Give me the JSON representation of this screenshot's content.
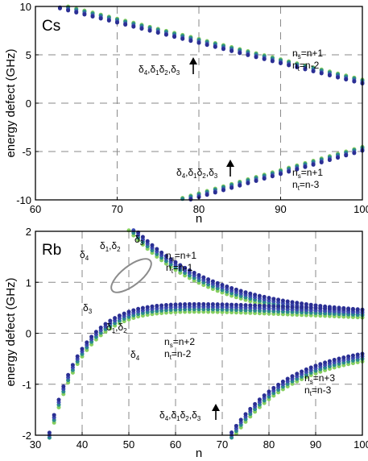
{
  "colors": {
    "s1": "#86cf5f",
    "s2": "#2a8a8c",
    "s3": "#3c4bb0",
    "s4": "#2b2f94"
  },
  "chart_data": [
    {
      "type": "scatter",
      "panel_label": "Cs",
      "xlabel": "n",
      "ylabel": "energy defect (GHz)",
      "xlim": [
        60,
        100
      ],
      "ylim": [
        -10,
        10
      ],
      "xticks": [
        60,
        70,
        80,
        90,
        100
      ],
      "yticks": [
        10,
        5,
        0,
        -5,
        -10
      ],
      "grid": "dashed",
      "series": [
        {
          "color": "#86cf5f",
          "branch": "upper",
          "model": {
            "A": 1.0,
            "n0": 61.0,
            "sign": 1,
            "p": 3,
            "offset": 0.2
          },
          "n_start": 63,
          "n_end": 100
        },
        {
          "color": "#2a8a8c",
          "branch": "upper",
          "model": {
            "A": 1.0,
            "n0": 61.0,
            "sign": 1,
            "p": 3,
            "offset": 0.1
          },
          "n_start": 63,
          "n_end": 100
        },
        {
          "color": "#3c4bb0",
          "branch": "upper",
          "model": {
            "A": 1.0,
            "n0": 61.0,
            "sign": 1,
            "p": 3,
            "offset": -0.1
          },
          "n_start": 63,
          "n_end": 100
        },
        {
          "color": "#2b2f94",
          "branch": "upper",
          "model": {
            "A": 1.0,
            "n0": 61.0,
            "sign": 1,
            "p": 3,
            "offset": -0.2
          },
          "n_start": 63,
          "n_end": 100
        },
        {
          "color": "#86cf5f",
          "branch": "lower",
          "model": {
            "A": 1.0,
            "n0": 76.0,
            "sign": -1,
            "p": 3,
            "offset": 0.2
          },
          "n_start": 78,
          "n_end": 100
        },
        {
          "color": "#2a8a8c",
          "branch": "lower",
          "model": {
            "A": 1.0,
            "n0": 76.0,
            "sign": -1,
            "p": 3,
            "offset": 0.1
          },
          "n_start": 78,
          "n_end": 100
        },
        {
          "color": "#3c4bb0",
          "branch": "lower",
          "model": {
            "A": 1.0,
            "n0": 76.0,
            "sign": -1,
            "p": 3,
            "offset": -0.1
          },
          "n_start": 78,
          "n_end": 100
        },
        {
          "color": "#2b2f94",
          "branch": "lower",
          "model": {
            "A": 1.0,
            "n0": 76.0,
            "sign": -1,
            "p": 3,
            "offset": -0.2
          },
          "n_start": 78,
          "n_end": 100
        }
      ],
      "annotations": [
        {
          "id": "cs-upper-deltas",
          "text": "δ4,δ1δ2,δ3",
          "n": 79.5,
          "value": 4.8
        },
        {
          "id": "cs-upper-ns",
          "line1": "ns=n+1",
          "line2": "nt=n-2",
          "n": 95,
          "value": 5.5
        },
        {
          "id": "cs-lower-deltas",
          "text": "δ4,δ1δ2,δ3",
          "n": 84.5,
          "value": -6.6
        },
        {
          "id": "cs-lower-ns",
          "line1": "ns=n+1",
          "line2": "nt=n-3",
          "n": 95,
          "value": -7.4
        }
      ]
    },
    {
      "type": "scatter",
      "panel_label": "Rb",
      "xlabel": "n",
      "ylabel": "energy defect (GHz)",
      "xlim": [
        30,
        100
      ],
      "ylim": [
        -2,
        2
      ],
      "xticks": [
        30,
        40,
        50,
        60,
        70,
        80,
        90,
        100
      ],
      "yticks": [
        2,
        1,
        0,
        -1,
        -2
      ],
      "grid": "dashed",
      "series": [
        {
          "color": "#86cf5f",
          "branch": "upper",
          "model": {
            "A": 0.4,
            "p": 1,
            "c": 0.2
          },
          "n_start": 45,
          "n_end": 100
        },
        {
          "color": "#2a8a8c",
          "branch": "upper",
          "model": {
            "A": 0.4,
            "p": 1,
            "c": 0.25
          },
          "n_start": 45,
          "n_end": 100
        },
        {
          "color": "#3c4bb0",
          "branch": "upper",
          "model": {
            "A": 0.4,
            "p": 1,
            "c": 0.3
          },
          "n_start": 45,
          "n_end": 100
        },
        {
          "color": "#2b2f94",
          "branch": "upper",
          "model": {
            "A": 0.4,
            "p": 1,
            "c": 0.35
          },
          "n_start": 45,
          "n_end": 100
        },
        {
          "color": "#86cf5f",
          "branch": "middle",
          "model": {
            "A": 0.4,
            "p": 1,
            "c": -0.35
          },
          "n_start": 33,
          "n_end": 100
        },
        {
          "color": "#2a8a8c",
          "branch": "middle",
          "model": {
            "A": 0.4,
            "p": 1,
            "c": -0.3
          },
          "n_start": 33,
          "n_end": 100
        },
        {
          "color": "#3c4bb0",
          "branch": "middle",
          "model": {
            "A": 0.4,
            "p": 1,
            "c": -0.25
          },
          "n_start": 33,
          "n_end": 100
        },
        {
          "color": "#2b2f94",
          "branch": "middle",
          "model": {
            "A": 0.4,
            "p": 1,
            "c": -0.2
          },
          "n_start": 33,
          "n_end": 100
        },
        {
          "color": "#86cf5f",
          "branch": "lower",
          "model": {
            "A": 0.4,
            "p": 1,
            "c": -0.9
          },
          "n_start": 69,
          "n_end": 100
        },
        {
          "color": "#2a8a8c",
          "branch": "lower",
          "model": {
            "A": 0.4,
            "p": 1,
            "c": -0.85
          },
          "n_start": 69,
          "n_end": 100
        },
        {
          "color": "#3c4bb0",
          "branch": "lower",
          "model": {
            "A": 0.4,
            "p": 1,
            "c": -0.8
          },
          "n_start": 69,
          "n_end": 100
        },
        {
          "color": "#2b2f94",
          "branch": "lower",
          "model": {
            "A": 0.4,
            "p": 1,
            "c": -0.75
          },
          "n_start": 69,
          "n_end": 100
        }
      ],
      "annotations": [
        {
          "id": "rb-delta4-upper",
          "text": "δ4",
          "n": 41,
          "value": 1.65
        },
        {
          "id": "rb-delta12-upper",
          "text": "δ1,δ2",
          "n": 48,
          "value": 1.8
        },
        {
          "id": "rb-delta3-upper",
          "text": "δ3",
          "n": 53,
          "value": 1.85
        },
        {
          "id": "rb-ns-upper",
          "line1": "ns=n+1",
          "line2": "nt=n-1",
          "n": 65,
          "value": 1.4
        },
        {
          "id": "rb-delta3-mid",
          "text": "δ3",
          "n": 42.5,
          "value": 0.35
        },
        {
          "id": "rb-delta12-mid",
          "text": "δ1,δ2",
          "n": 48,
          "value": 0.05
        },
        {
          "id": "rb-delta4-mid",
          "text": "δ4",
          "n": 53,
          "value": -0.4
        },
        {
          "id": "rb-ns-mid",
          "line1": "ns=n+2",
          "line2": "nt=n-2",
          "n": 62.5,
          "value": -0.35
        },
        {
          "id": "rb-ns-lower",
          "line1": "ns=n+3",
          "line2": "nt=n-3",
          "n": 88,
          "value": -1.0
        },
        {
          "id": "rb-deltas-lower",
          "text": "δ4,δ1δ2,δ3",
          "n": 63.5,
          "value": -1.8
        }
      ]
    }
  ]
}
